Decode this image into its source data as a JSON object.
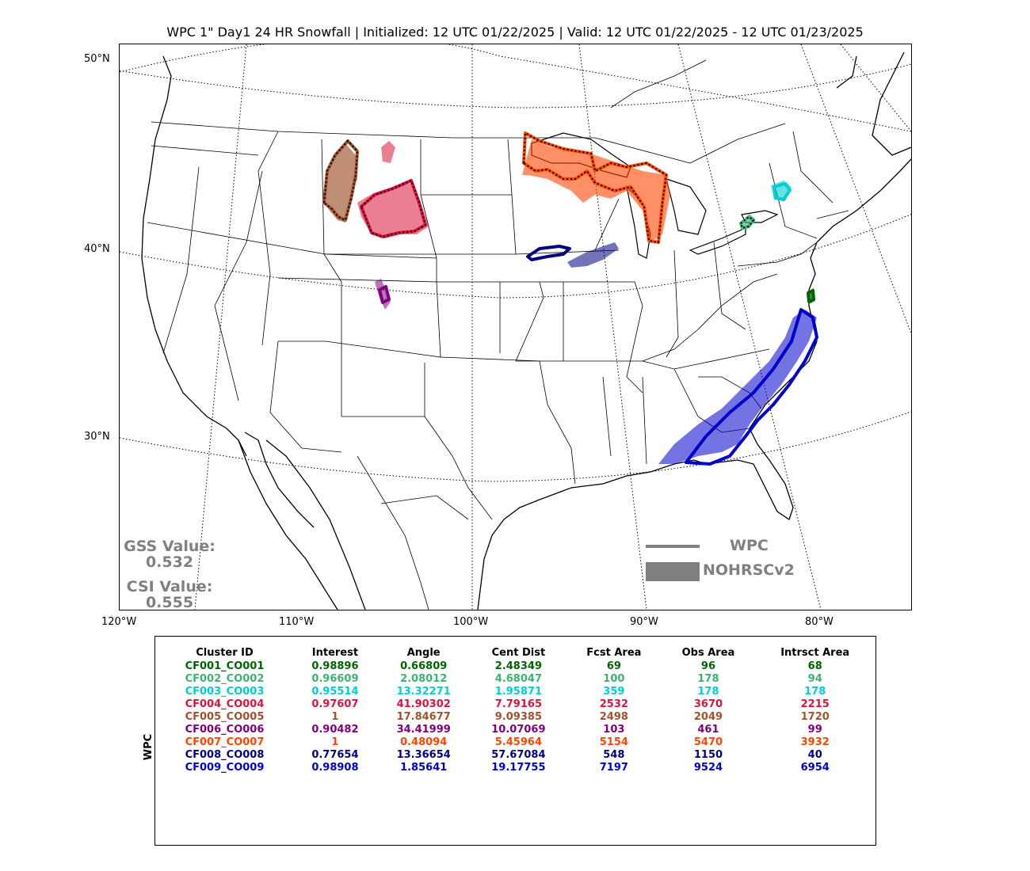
{
  "title": "WPC 1\" Day1 24 HR Snowfall | Initialized: 12 UTC 01/22/2025 | Valid: 12 UTC 01/22/2025 - 12 UTC 01/23/2025",
  "lat_labels": [
    "50°N",
    "40°N",
    "30°N"
  ],
  "lon_labels": [
    "120°W",
    "110°W",
    "100°W",
    "90°W",
    "80°W"
  ],
  "scores": {
    "gss_label": "GSS Value:",
    "gss_value": "0.532",
    "csi_label": "CSI Value:",
    "csi_value": "0.555"
  },
  "legend": {
    "line_label": "WPC",
    "fill_label": "NOHRSCv2",
    "color": "#808080"
  },
  "table": {
    "side_label": "WPC",
    "headers": [
      "Cluster ID",
      "Interest",
      "Angle",
      "Cent Dist",
      "Fcst Area",
      "Obs Area",
      "Intrsct Area"
    ],
    "rows": [
      {
        "color": "#006400",
        "cells": [
          "CF001_CO001",
          "0.98896",
          "0.66809",
          "2.48349",
          "69",
          "96",
          "68"
        ]
      },
      {
        "color": "#3cb371",
        "cells": [
          "CF002_CO002",
          "0.96609",
          "2.08012",
          "4.68047",
          "100",
          "178",
          "94"
        ]
      },
      {
        "color": "#00ced1",
        "cells": [
          "CF003_CO003",
          "0.95514",
          "13.32271",
          "1.95871",
          "359",
          "178",
          "178"
        ]
      },
      {
        "color": "#dc143c",
        "cells": [
          "CF004_CO004",
          "0.97607",
          "41.90302",
          "7.79165",
          "2532",
          "3670",
          "2215"
        ]
      },
      {
        "color": "#a0522d",
        "cells": [
          "CF005_CO005",
          "1",
          "17.84677",
          "9.09385",
          "2498",
          "2049",
          "1720"
        ]
      },
      {
        "color": "#800080",
        "cells": [
          "CF006_CO006",
          "0.90482",
          "34.41999",
          "10.07069",
          "103",
          "461",
          "99"
        ]
      },
      {
        "color": "#ff4500",
        "cells": [
          "CF007_CO007",
          "1",
          "0.48094",
          "5.45964",
          "5154",
          "5470",
          "3932"
        ]
      },
      {
        "color": "#000080",
        "cells": [
          "CF008_CO008",
          "0.77654",
          "13.36654",
          "57.67084",
          "548",
          "1150",
          "40"
        ]
      },
      {
        "color": "#0000cd",
        "cells": [
          "CF009_CO009",
          "0.98908",
          "1.85641",
          "19.17755",
          "7197",
          "9524",
          "6954"
        ]
      }
    ]
  },
  "clusters": [
    {
      "id": "CF001_CO001",
      "color": "#006400"
    },
    {
      "id": "CF002_CO002",
      "color": "#3cb371"
    },
    {
      "id": "CF003_CO003",
      "color": "#00ced1"
    },
    {
      "id": "CF004_CO004",
      "color": "#dc143c"
    },
    {
      "id": "CF005_CO005",
      "color": "#a0522d"
    },
    {
      "id": "CF006_CO006",
      "color": "#800080"
    },
    {
      "id": "CF007_CO007",
      "color": "#ff4500"
    },
    {
      "id": "CF008_CO008",
      "color": "#000080"
    },
    {
      "id": "CF009_CO009",
      "color": "#0000cd"
    }
  ]
}
